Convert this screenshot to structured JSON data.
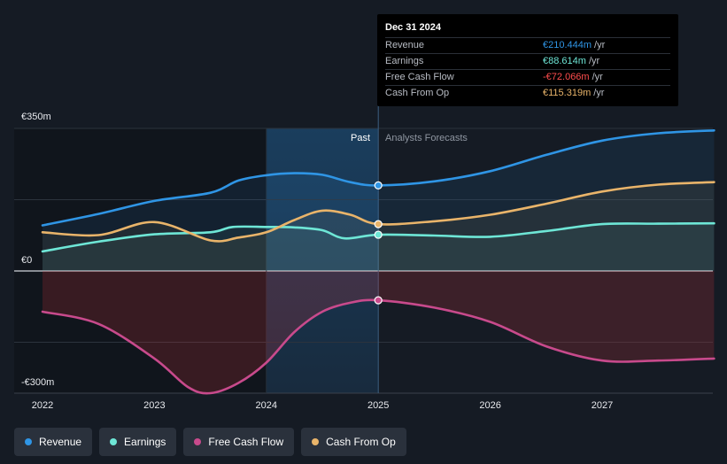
{
  "tooltip": {
    "date": "Dec 31 2024",
    "unit": "/yr",
    "rows": [
      {
        "name": "Revenue",
        "value": "€210.444m",
        "color": "#2f95e5"
      },
      {
        "name": "Earnings",
        "value": "€88.614m",
        "color": "#6ee6d6"
      },
      {
        "name": "Free Cash Flow",
        "value": "-€72.066m",
        "color": "#ff4d4d"
      },
      {
        "name": "Cash From Op",
        "value": "€115.319m",
        "color": "#e9b46a"
      }
    ]
  },
  "regions": {
    "past": "Past",
    "forecast": "Analysts Forecasts"
  },
  "legend": [
    {
      "label": "Revenue",
      "color": "#2f95e5"
    },
    {
      "label": "Earnings",
      "color": "#6ee6d6"
    },
    {
      "label": "Free Cash Flow",
      "color": "#c84a8c"
    },
    {
      "label": "Cash From Op",
      "color": "#e9b46a"
    }
  ],
  "chart_data": {
    "type": "line",
    "unit": "€m",
    "ylim": [
      -300,
      350
    ],
    "y_tick_labels": [
      "€350m",
      "€0",
      "-€300m"
    ],
    "y_ticks": [
      350,
      0,
      -300
    ],
    "x_ticks": [
      2022,
      2023,
      2024,
      2025,
      2026,
      2027
    ],
    "x_range": [
      2021.8,
      2028.0
    ],
    "past_end": 2025.0,
    "highlight_start": 2024.0,
    "series": [
      {
        "name": "Revenue",
        "color": "#2f95e5",
        "points": [
          [
            2022.0,
            112
          ],
          [
            2022.5,
            140
          ],
          [
            2023.0,
            172
          ],
          [
            2023.5,
            192
          ],
          [
            2023.75,
            222
          ],
          [
            2024.0,
            235
          ],
          [
            2024.25,
            240
          ],
          [
            2024.5,
            236
          ],
          [
            2024.75,
            218
          ],
          [
            2025.0,
            210
          ],
          [
            2025.5,
            220
          ],
          [
            2026.0,
            245
          ],
          [
            2026.5,
            285
          ],
          [
            2027.0,
            320
          ],
          [
            2027.5,
            338
          ],
          [
            2028.0,
            345
          ]
        ]
      },
      {
        "name": "Earnings",
        "color": "#6ee6d6",
        "points": [
          [
            2022.0,
            48
          ],
          [
            2022.5,
            72
          ],
          [
            2023.0,
            90
          ],
          [
            2023.5,
            95
          ],
          [
            2023.7,
            108
          ],
          [
            2024.0,
            108
          ],
          [
            2024.25,
            107
          ],
          [
            2024.5,
            100
          ],
          [
            2024.7,
            80
          ],
          [
            2025.0,
            89
          ],
          [
            2025.5,
            87
          ],
          [
            2026.0,
            84
          ],
          [
            2026.5,
            98
          ],
          [
            2027.0,
            115
          ],
          [
            2027.5,
            116
          ],
          [
            2028.0,
            117
          ]
        ]
      },
      {
        "name": "Free Cash Flow",
        "color": "#c84a8c",
        "points": [
          [
            2022.0,
            -100
          ],
          [
            2022.5,
            -130
          ],
          [
            2023.0,
            -215
          ],
          [
            2023.3,
            -285
          ],
          [
            2023.5,
            -300
          ],
          [
            2023.75,
            -275
          ],
          [
            2024.0,
            -225
          ],
          [
            2024.25,
            -150
          ],
          [
            2024.5,
            -100
          ],
          [
            2024.75,
            -78
          ],
          [
            2025.0,
            -72
          ],
          [
            2025.5,
            -90
          ],
          [
            2026.0,
            -125
          ],
          [
            2026.5,
            -185
          ],
          [
            2027.0,
            -220
          ],
          [
            2027.5,
            -220
          ],
          [
            2028.0,
            -215
          ]
        ]
      },
      {
        "name": "Cash From Op",
        "color": "#e9b46a",
        "points": [
          [
            2022.0,
            95
          ],
          [
            2022.5,
            88
          ],
          [
            2023.0,
            120
          ],
          [
            2023.5,
            75
          ],
          [
            2023.75,
            82
          ],
          [
            2024.0,
            95
          ],
          [
            2024.25,
            125
          ],
          [
            2024.5,
            148
          ],
          [
            2024.75,
            138
          ],
          [
            2025.0,
            115
          ],
          [
            2025.5,
            122
          ],
          [
            2026.0,
            138
          ],
          [
            2026.5,
            165
          ],
          [
            2027.0,
            195
          ],
          [
            2027.5,
            212
          ],
          [
            2028.0,
            218
          ]
        ]
      }
    ]
  }
}
